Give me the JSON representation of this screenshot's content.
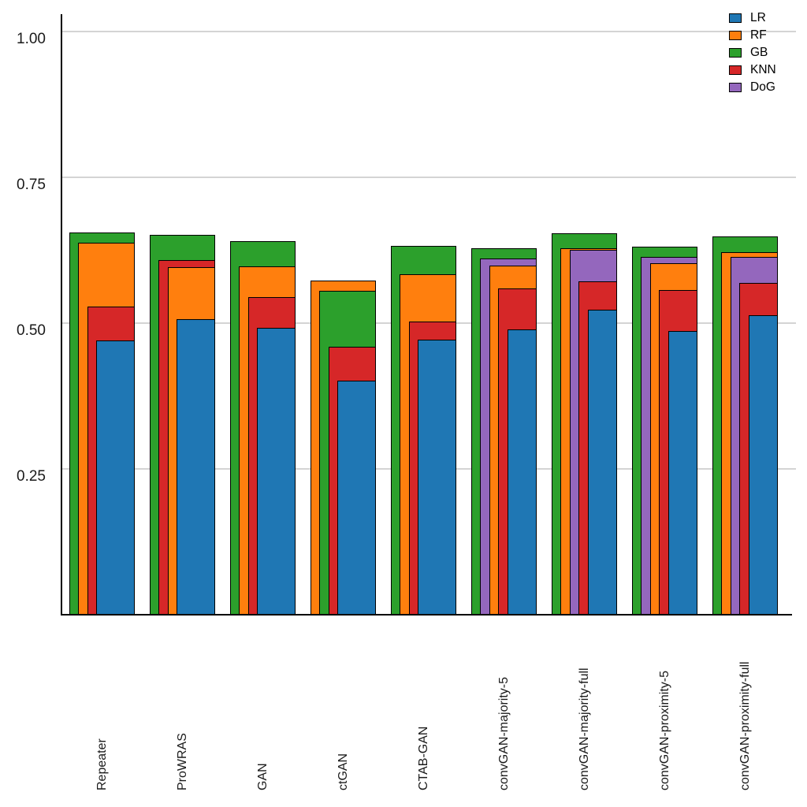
{
  "chart_data": {
    "type": "bar",
    "variant": "layered-overlapping-nested",
    "title": "",
    "xlabel": "",
    "ylabel": "",
    "grid": true,
    "legend_position": "top-right",
    "ylim": [
      0,
      1.05
    ],
    "y_ticks": {
      "v100": "1.00",
      "v075": "0.75",
      "v050": "0.50",
      "v025": "0.25"
    },
    "y_tick_values": [
      1.0,
      0.75,
      0.5,
      0.25
    ],
    "categories": [
      "Repeater",
      "ProWRAS",
      "GAN",
      "ctGAN",
      "CTAB-GAN",
      "convGAN-majority-5",
      "convGAN-majority-full",
      "convGAN-proximity-5",
      "convGAN-proximity-full"
    ],
    "series": [
      {
        "name": "LR",
        "color": "#1f77b4",
        "values": [
          0.47,
          0.507,
          0.492,
          0.402,
          0.472,
          0.489,
          0.523,
          0.487,
          0.514
        ]
      },
      {
        "name": "RF",
        "color": "#ff7f0e",
        "values": [
          0.638,
          0.596,
          0.597,
          0.573,
          0.584,
          0.599,
          0.628,
          0.603,
          0.622
        ]
      },
      {
        "name": "GB",
        "color": "#2ca02c",
        "values": [
          0.656,
          0.651,
          0.64,
          0.555,
          0.632,
          0.628,
          0.654,
          0.631,
          0.648
        ]
      },
      {
        "name": "KNN",
        "color": "#d62728",
        "values": [
          0.528,
          0.608,
          0.545,
          0.46,
          0.503,
          0.559,
          0.572,
          0.557,
          0.569
        ]
      },
      {
        "name": "DoG",
        "color": "#9467bd",
        "values": [
          null,
          null,
          null,
          null,
          null,
          0.611,
          0.626,
          0.613,
          0.614
        ]
      }
    ],
    "axis_color": "#000000",
    "gridline_color": "#d4d4d4"
  }
}
